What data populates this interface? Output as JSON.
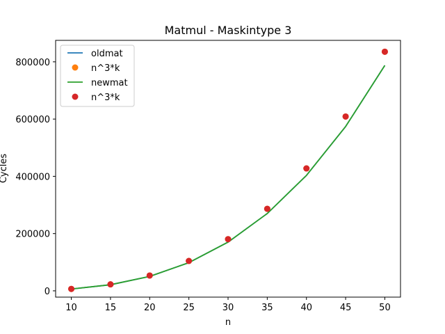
{
  "chart_data": {
    "type": "line",
    "title": "Matmul - Maskintype 3",
    "xlabel": "n",
    "ylabel": "Cycles",
    "x": [
      10,
      15,
      20,
      25,
      30,
      35,
      40,
      45,
      50
    ],
    "xticks": [
      10,
      15,
      20,
      25,
      30,
      35,
      40,
      45,
      50
    ],
    "yticks": [
      0,
      200000,
      400000,
      600000,
      800000
    ],
    "xlim": [
      8,
      52
    ],
    "ylim": [
      -22000,
      875000
    ],
    "legend_position": "top-left",
    "series": [
      {
        "name": "oldmat",
        "style": "line",
        "color": "#1f77b4",
        "values": [
          6300,
          21300,
          50400,
          98400,
          170100,
          270100,
          403200,
          574100,
          787500
        ]
      },
      {
        "name": "n^3*k",
        "style": "marker",
        "color": "#ff7f0e",
        "values": [
          6700,
          22600,
          53500,
          104400,
          180400,
          286500,
          427700,
          608900,
          835300
        ]
      },
      {
        "name": "newmat",
        "style": "line",
        "color": "#2ca02c",
        "values": [
          6300,
          21300,
          50400,
          98400,
          170100,
          270100,
          403200,
          574100,
          787500
        ]
      },
      {
        "name": "n^3*k",
        "style": "marker",
        "color": "#d62728",
        "values": [
          6700,
          22600,
          53500,
          104400,
          180400,
          286500,
          427700,
          608900,
          835300
        ]
      }
    ]
  }
}
